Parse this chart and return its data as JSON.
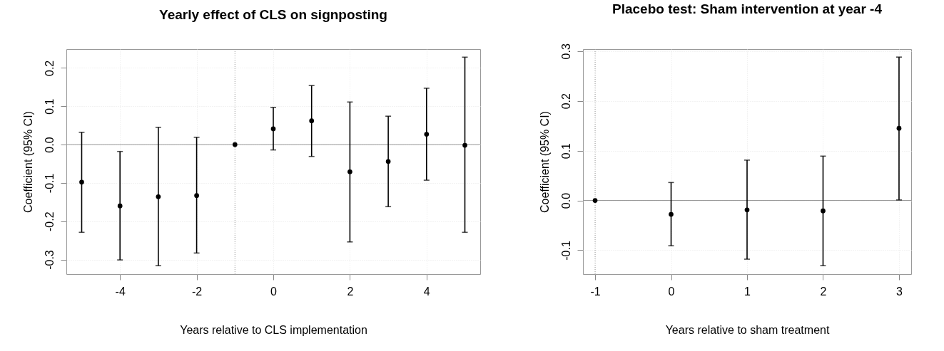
{
  "chart_data": [
    {
      "type": "scatter",
      "title": "Yearly effect of CLS on signposting",
      "xlabel": "Years relative to CLS implementation",
      "ylabel": "Coefficient (95% CI)",
      "x": [
        -5,
        -4,
        -3,
        -2,
        -1,
        0,
        1,
        2,
        3,
        4,
        5
      ],
      "series": [
        {
          "color": "#000000",
          "values": [
            -0.098,
            -0.16,
            -0.136,
            -0.133,
            0,
            0.041,
            0.062,
            -0.071,
            -0.044,
            0.027,
            -0.002
          ],
          "errors": [
            [
              -0.229,
              0.032
            ],
            [
              -0.301,
              -0.018
            ],
            [
              -0.316,
              0.045
            ],
            [
              -0.283,
              0.019
            ],
            null,
            [
              -0.014,
              0.097
            ],
            [
              -0.031,
              0.154
            ],
            [
              -0.254,
              0.111
            ],
            [
              -0.162,
              0.074
            ],
            [
              -0.093,
              0.147
            ],
            [
              -0.229,
              0.228
            ]
          ]
        }
      ],
      "xlim": [
        -5.4,
        5.4
      ],
      "xticks": [
        -4,
        -2,
        0,
        2,
        4
      ],
      "ylim": [
        -0.338,
        0.249
      ],
      "yticks": [
        -0.3,
        -0.2,
        -0.1,
        {
          "value": 0,
          "label": "0.0"
        },
        0.1,
        0.2
      ],
      "ref_lines": [
        {
          "axis": "y",
          "value": 0,
          "color": "#999999",
          "line_style": "solid"
        },
        {
          "axis": "x",
          "value": -1,
          "color": "#999999",
          "line_style": "dotted"
        }
      ],
      "grid": true,
      "marker": "circle"
    },
    {
      "type": "scatter",
      "title": "Placebo test: Sham intervention at year -4",
      "xlabel": "Years relative to sham treatment",
      "ylabel": "Coefficient (95% CI)",
      "x": [
        -1,
        0,
        1,
        2,
        3
      ],
      "series": [
        {
          "color": "#000000",
          "values": [
            0,
            -0.028,
            -0.019,
            -0.021,
            0.145
          ],
          "errors": [
            null,
            [
              -0.091,
              0.036
            ],
            [
              -0.118,
              0.081
            ],
            [
              -0.131,
              0.089
            ],
            [
              0.001,
              0.288
            ]
          ]
        }
      ],
      "xlim": [
        -1.16,
        3.16
      ],
      "xticks": [
        -1,
        0,
        1,
        2,
        3
      ],
      "ylim": [
        -0.148,
        0.304
      ],
      "yticks": [
        -0.1,
        {
          "value": 0,
          "label": "0.0"
        },
        0.1,
        0.2,
        0.3
      ],
      "ref_lines": [
        {
          "axis": "y",
          "value": 0,
          "color": "#999999",
          "line_style": "solid"
        },
        {
          "axis": "x",
          "value": -1,
          "color": "#999999",
          "line_style": "dotted"
        }
      ],
      "grid": true,
      "marker": "circle"
    }
  ]
}
